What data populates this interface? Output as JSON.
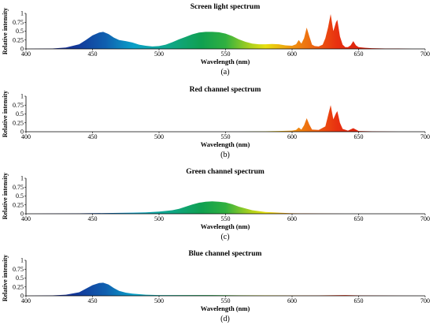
{
  "palette": {
    "violet": "#2a1a8c",
    "blue": "#1060b0",
    "cyan": "#0aa0c8",
    "green": "#10a050",
    "yellow": "#e8e010",
    "orange": "#f09010",
    "red": "#e01010",
    "axis": "#000000"
  },
  "chart_data": [
    {
      "type": "area",
      "title": "Screen light spectrum",
      "caption": "(a)",
      "xlabel": "Wavelength (nm)",
      "ylabel": "Relative intensity",
      "xlim": [
        400,
        700
      ],
      "ylim": [
        0,
        1
      ],
      "xticks": [
        400,
        450,
        500,
        550,
        600,
        650,
        700
      ],
      "yticks": [
        0,
        0.25,
        0.5,
        0.75,
        1
      ],
      "ytick_labels": [
        "0",
        "0.25",
        "0.5",
        "0.75",
        "1"
      ],
      "series": [
        {
          "x": [
            400,
            420,
            430,
            440,
            445,
            450,
            455,
            458,
            462,
            466,
            470,
            475,
            480,
            485,
            490,
            495,
            500,
            505,
            510,
            515,
            520,
            525,
            530,
            535,
            540,
            545,
            550,
            555,
            560,
            565,
            570,
            575,
            580,
            585,
            590,
            595,
            600,
            603,
            605,
            607,
            609,
            611,
            613,
            615,
            617,
            620,
            623,
            625,
            627,
            629,
            631,
            633,
            634,
            636,
            638,
            640,
            642,
            644,
            646,
            648,
            650,
            655,
            660,
            670,
            680,
            690,
            700
          ],
          "y": [
            0,
            0.01,
            0.04,
            0.13,
            0.25,
            0.38,
            0.46,
            0.48,
            0.42,
            0.32,
            0.25,
            0.22,
            0.18,
            0.12,
            0.09,
            0.07,
            0.08,
            0.12,
            0.19,
            0.27,
            0.34,
            0.41,
            0.46,
            0.48,
            0.48,
            0.47,
            0.43,
            0.36,
            0.27,
            0.2,
            0.15,
            0.13,
            0.13,
            0.14,
            0.13,
            0.1,
            0.09,
            0.13,
            0.25,
            0.15,
            0.3,
            0.6,
            0.35,
            0.12,
            0.08,
            0.07,
            0.12,
            0.3,
            0.6,
            0.98,
            0.5,
            0.75,
            0.82,
            0.35,
            0.12,
            0.05,
            0.05,
            0.1,
            0.22,
            0.1,
            0.05,
            0.03,
            0.02,
            0.01,
            0.01,
            0,
            0
          ]
        }
      ]
    },
    {
      "type": "area",
      "title": "Red channel spectrum",
      "caption": "(b)",
      "xlabel": "Wavelength (nm)",
      "ylabel": "Relative intensity",
      "xlim": [
        400,
        700
      ],
      "ylim": [
        0,
        1
      ],
      "xticks": [
        400,
        450,
        500,
        550,
        600,
        650,
        700
      ],
      "yticks": [
        0,
        0.25,
        0.5,
        0.75,
        1
      ],
      "ytick_labels": [
        "0",
        "0.25",
        "0.5",
        "0.75",
        "1"
      ],
      "series": [
        {
          "x": [
            400,
            560,
            570,
            580,
            590,
            600,
            603,
            605,
            607,
            609,
            611,
            613,
            615,
            620,
            625,
            627,
            629,
            631,
            633,
            634,
            636,
            638,
            642,
            646,
            648,
            650,
            660,
            680,
            700
          ],
          "y": [
            0,
            0,
            0.005,
            0.01,
            0.02,
            0.03,
            0.05,
            0.12,
            0.06,
            0.18,
            0.38,
            0.2,
            0.06,
            0.05,
            0.15,
            0.45,
            0.75,
            0.35,
            0.52,
            0.58,
            0.25,
            0.08,
            0.03,
            0.1,
            0.06,
            0.02,
            0.01,
            0,
            0
          ]
        }
      ]
    },
    {
      "type": "area",
      "title": "Green channel spectrum",
      "caption": "(c)",
      "xlabel": "Wavelength (nm)",
      "ylabel": "Relative intensity",
      "xlim": [
        400,
        700
      ],
      "ylim": [
        0,
        1
      ],
      "xticks": [
        400,
        450,
        500,
        550,
        600,
        650,
        700
      ],
      "yticks": [
        0,
        0.25,
        0.5,
        0.75,
        1
      ],
      "ytick_labels": [
        "0",
        "0.25",
        "0.5",
        "0.75",
        "1"
      ],
      "series": [
        {
          "x": [
            400,
            440,
            460,
            480,
            490,
            500,
            510,
            515,
            520,
            525,
            530,
            535,
            540,
            545,
            550,
            555,
            560,
            565,
            570,
            580,
            590,
            600,
            610,
            620,
            640,
            700
          ],
          "y": [
            0,
            0.01,
            0.02,
            0.03,
            0.04,
            0.06,
            0.1,
            0.14,
            0.2,
            0.26,
            0.31,
            0.34,
            0.35,
            0.34,
            0.32,
            0.27,
            0.2,
            0.15,
            0.1,
            0.05,
            0.03,
            0.015,
            0.01,
            0.005,
            0,
            0
          ]
        }
      ]
    },
    {
      "type": "area",
      "title": "Blue channel spectrum",
      "caption": "(d)",
      "xlabel": "Wavelength (nm)",
      "ylabel": "Relative intensity",
      "xlim": [
        400,
        700
      ],
      "ylim": [
        0,
        1
      ],
      "xticks": [
        400,
        450,
        500,
        550,
        600,
        650,
        700
      ],
      "yticks": [
        0,
        0.25,
        0.5,
        0.75,
        1
      ],
      "ytick_labels": [
        "0",
        "0.25",
        "0.5",
        "0.75",
        "1"
      ],
      "series": [
        {
          "x": [
            400,
            420,
            430,
            440,
            445,
            450,
            455,
            458,
            462,
            466,
            470,
            475,
            480,
            490,
            500,
            520,
            540,
            560,
            600,
            620,
            640,
            650,
            700
          ],
          "y": [
            0,
            0.01,
            0.03,
            0.1,
            0.2,
            0.3,
            0.36,
            0.37,
            0.32,
            0.22,
            0.14,
            0.09,
            0.06,
            0.03,
            0.02,
            0.02,
            0.02,
            0.015,
            0.01,
            0.01,
            0.02,
            0.01,
            0
          ]
        }
      ]
    }
  ]
}
